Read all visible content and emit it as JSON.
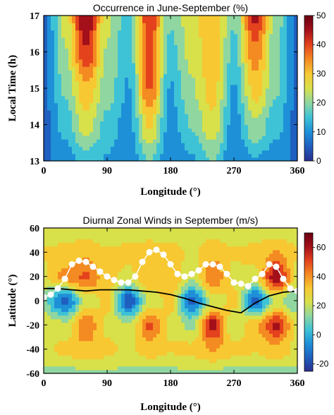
{
  "colors": {
    "colormap": [
      "#2a2f8f",
      "#1f5fbf",
      "#1e90d8",
      "#3ec3d6",
      "#8fd6a0",
      "#d8e04a",
      "#f7c832",
      "#f48a22",
      "#e4421d",
      "#a3101a",
      "#6a0010"
    ],
    "white_path": "#ffffff",
    "black_path": "#000000"
  },
  "chart_data": [
    {
      "type": "heatmap",
      "title": "Occurrence in June-September (%)",
      "xlabel": "Longitude (°)",
      "ylabel": "Local Time (h)",
      "xlim": [
        0,
        360
      ],
      "ylim": [
        13,
        17
      ],
      "xticks": [
        0,
        90,
        180,
        270,
        360
      ],
      "yticks": [
        13,
        14,
        15,
        16,
        17
      ],
      "colorbar": {
        "range": [
          0,
          50
        ],
        "ticks": [
          0,
          10,
          20,
          30,
          40,
          50
        ]
      },
      "x": [
        0,
        30,
        60,
        90,
        120,
        150,
        180,
        210,
        240,
        270,
        300,
        330,
        360
      ],
      "y": [
        13,
        14,
        15,
        16,
        17
      ],
      "z": [
        [
          6,
          10,
          15,
          12,
          8,
          18,
          8,
          12,
          18,
          8,
          12,
          10,
          6
        ],
        [
          6,
          14,
          25,
          16,
          10,
          28,
          10,
          18,
          26,
          10,
          22,
          14,
          6
        ],
        [
          6,
          18,
          32,
          20,
          12,
          38,
          12,
          22,
          30,
          12,
          30,
          18,
          6
        ],
        [
          6,
          22,
          42,
          22,
          14,
          40,
          16,
          24,
          32,
          16,
          36,
          18,
          6
        ],
        [
          6,
          24,
          48,
          24,
          14,
          42,
          18,
          26,
          32,
          18,
          44,
          20,
          6
        ]
      ]
    },
    {
      "type": "heatmap",
      "title": "Diurnal Zonal Winds in September (m/s)",
      "xlabel": "Longitude (°)",
      "ylabel": "Latitude (°)",
      "xlim": [
        0,
        360
      ],
      "ylim": [
        -60,
        60
      ],
      "xticks": [
        0,
        90,
        180,
        270,
        360
      ],
      "yticks": [
        -60,
        -40,
        -20,
        0,
        20,
        40,
        60
      ],
      "colorbar": {
        "range": [
          -25,
          70
        ],
        "ticks": [
          -20,
          0,
          20,
          40,
          60
        ]
      },
      "x": [
        0,
        30,
        60,
        90,
        120,
        150,
        180,
        210,
        240,
        270,
        300,
        330,
        360
      ],
      "y": [
        -60,
        -40,
        -20,
        0,
        20,
        40,
        60
      ],
      "z": [
        [
          15,
          15,
          16,
          17,
          16,
          15,
          16,
          17,
          16,
          15,
          16,
          15,
          15
        ],
        [
          25,
          30,
          35,
          30,
          25,
          32,
          28,
          30,
          38,
          30,
          28,
          34,
          25
        ],
        [
          25,
          20,
          45,
          25,
          18,
          48,
          25,
          15,
          60,
          20,
          35,
          58,
          25
        ],
        [
          10,
          -15,
          20,
          30,
          -18,
          20,
          30,
          -15,
          20,
          30,
          -15,
          20,
          10
        ],
        [
          25,
          40,
          48,
          30,
          25,
          35,
          35,
          20,
          45,
          25,
          25,
          62,
          25
        ],
        [
          28,
          30,
          35,
          28,
          30,
          32,
          32,
          25,
          35,
          28,
          30,
          38,
          28
        ],
        [
          20,
          20,
          22,
          20,
          21,
          22,
          20,
          20,
          22,
          20,
          20,
          22,
          20
        ]
      ],
      "white_path": {
        "lon": [
          0,
          10,
          20,
          30,
          40,
          50,
          60,
          70,
          80,
          90,
          100,
          110,
          120,
          130,
          140,
          150,
          160,
          170,
          180,
          190,
          200,
          210,
          220,
          230,
          240,
          250,
          260,
          270,
          280,
          290,
          300,
          310,
          320,
          330,
          340,
          350,
          360
        ],
        "lat": [
          3,
          5,
          10,
          18,
          30,
          33,
          32,
          28,
          24,
          20,
          17,
          15,
          15,
          20,
          32,
          40,
          42,
          38,
          30,
          22,
          20,
          22,
          25,
          30,
          30,
          28,
          22,
          15,
          14,
          12,
          18,
          22,
          30,
          28,
          18,
          10,
          8
        ]
      },
      "black_path": {
        "lon": [
          0,
          20,
          40,
          60,
          80,
          100,
          120,
          140,
          160,
          180,
          200,
          220,
          240,
          260,
          280,
          300,
          320,
          340,
          360
        ],
        "lat": [
          10,
          10,
          9,
          8,
          9,
          9,
          9,
          8,
          7,
          5,
          2,
          -2,
          -5,
          -8,
          -10,
          -2,
          4,
          7,
          8
        ]
      }
    }
  ]
}
